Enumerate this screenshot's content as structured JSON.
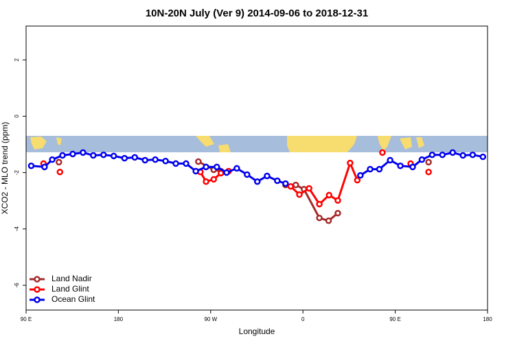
{
  "chart_data": {
    "type": "line",
    "title": "10N-20N July (Ver 9)   2014-09-06 to 2018-12-31",
    "x_label": "Longitude",
    "y_label": "XCO2 - MLO trend (ppm)",
    "xlim": [
      90,
      540
    ],
    "ylim": [
      -6.88,
      3.2
    ],
    "xticks": [
      {
        "value": 90,
        "label": "90 E"
      },
      180,
      {
        "value": 270,
        "label": "90 W"
      },
      {
        "value": 360,
        "label": "0"
      },
      {
        "value": 450,
        "label": "90 E"
      },
      {
        "value": 540,
        "label": "180"
      }
    ],
    "yticks": [
      -6,
      -4,
      -2,
      0,
      2
    ],
    "legend": "bottom-left",
    "series": [
      {
        "name": "Land Nadir",
        "color": "#a52a2a",
        "x": [
          122,
          null,
          258,
          273,
          280,
          null,
          343,
          353,
          361,
          376,
          385,
          394,
          null,
          482.5
        ],
        "values": [
          -1.63,
          null,
          -1.61,
          -1.9,
          -1.95,
          null,
          -2.44,
          -2.44,
          -2.59,
          -3.61,
          -3.71,
          -3.44,
          null,
          -1.63
        ]
      },
      {
        "name": "Land Glint",
        "color": "#ff0000",
        "x": [
          107,
          null,
          123,
          null,
          260,
          265.5,
          273,
          280,
          287.5,
          null,
          348,
          356.5,
          366,
          376,
          385.5,
          394,
          406,
          413,
          null,
          437.5,
          null,
          465,
          null,
          482.5
        ],
        "values": [
          -1.68,
          null,
          -1.98,
          null,
          -1.98,
          -2.32,
          -2.24,
          -2.02,
          -1.95,
          null,
          -2.49,
          -2.78,
          -2.56,
          -3.12,
          -2.8,
          -2.99,
          -1.66,
          -2.27,
          null,
          -1.29,
          null,
          -1.68,
          null,
          -1.98
        ]
      },
      {
        "name": "Ocean Glint",
        "color": "#0000ee",
        "x": [
          95,
          108,
          115.5,
          125.5,
          135.5,
          145.5,
          155.5,
          165.5,
          175.5,
          186,
          196,
          206,
          216,
          226,
          236,
          246,
          255.5,
          265.5,
          276,
          285.5,
          295.5,
          305.5,
          315.5,
          325,
          335,
          343,
          null,
          416,
          425.5,
          434.5,
          445,
          455,
          467,
          476,
          486,
          496,
          506,
          516,
          525.5,
          535.5
        ],
        "values": [
          -1.76,
          -1.8,
          -1.54,
          -1.39,
          -1.34,
          -1.29,
          -1.39,
          -1.37,
          -1.41,
          -1.49,
          -1.46,
          -1.56,
          -1.54,
          -1.59,
          -1.68,
          -1.68,
          -1.95,
          -1.8,
          -1.8,
          -2.0,
          -1.85,
          -2.07,
          -2.32,
          -2.12,
          -2.29,
          -2.39,
          null,
          -2.1,
          -1.88,
          -1.88,
          -1.56,
          -1.76,
          -1.8,
          -1.54,
          -1.37,
          -1.37,
          -1.29,
          -1.39,
          -1.37,
          -1.44
        ]
      }
    ]
  }
}
